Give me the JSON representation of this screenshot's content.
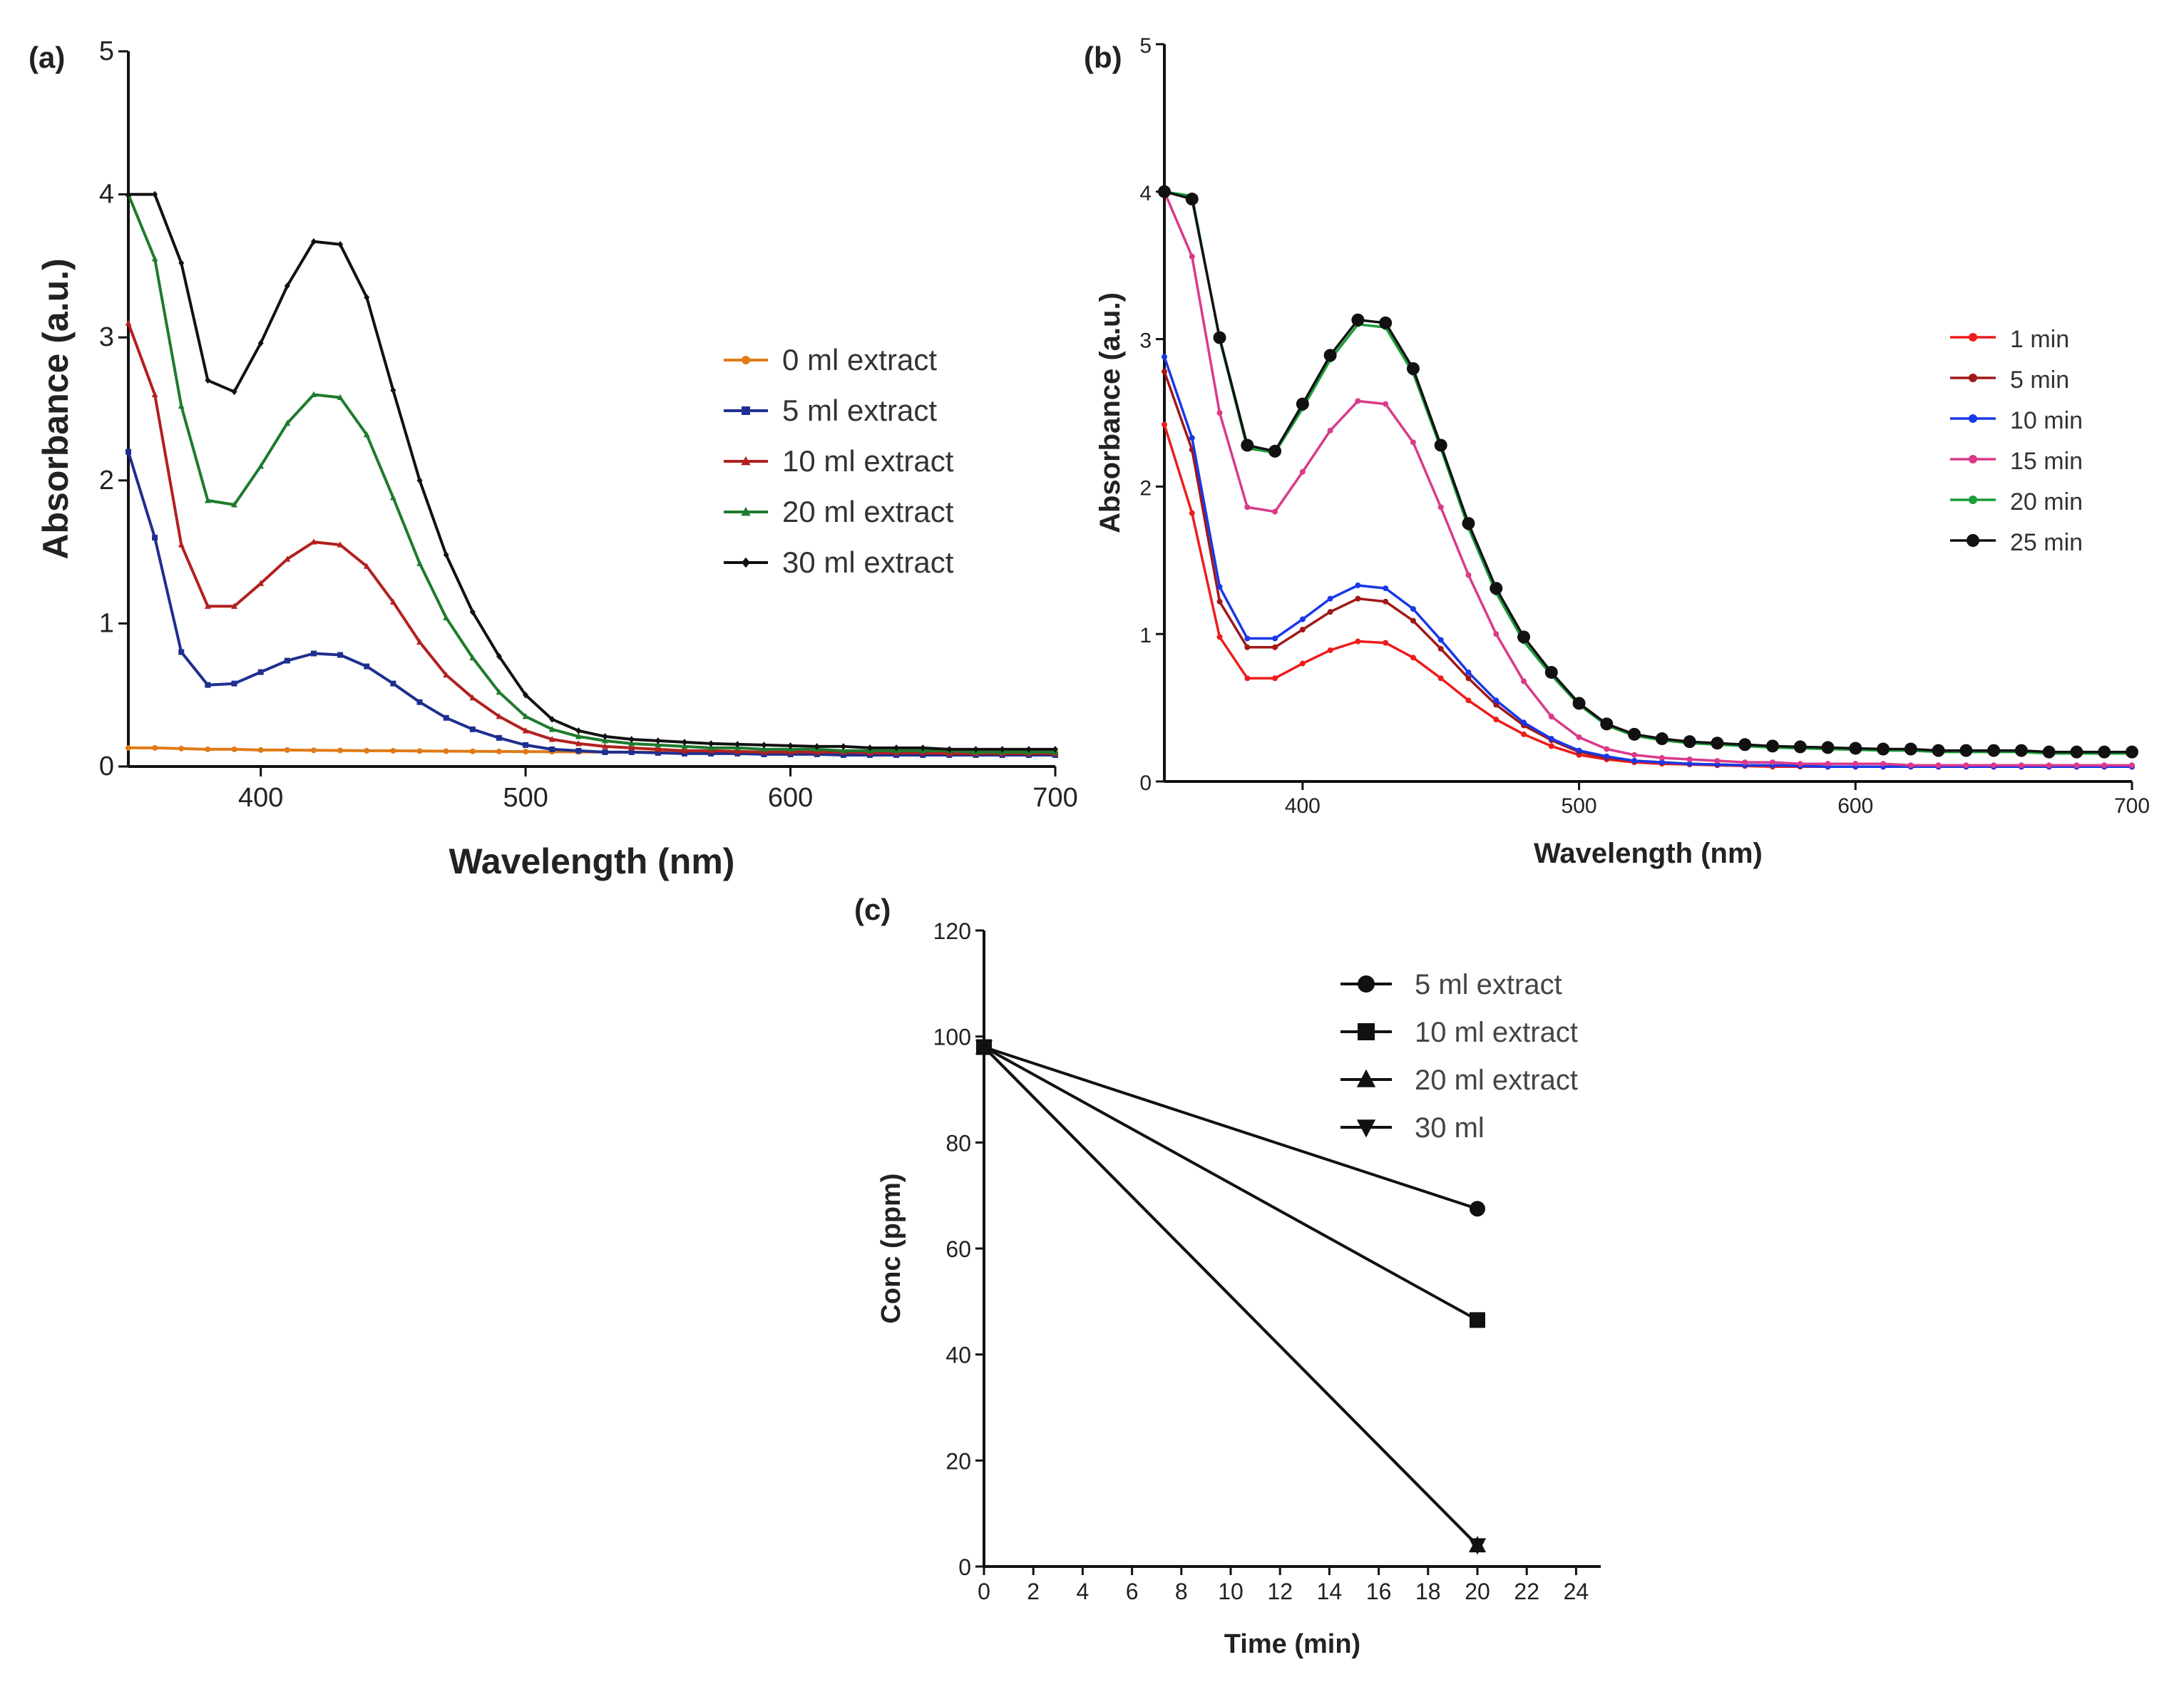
{
  "chart_data": [
    {
      "panel": "(a)",
      "type": "line",
      "xlabel": "Wavelength (nm)",
      "ylabel": "Absorbance (a.u.)",
      "xlim": [
        350,
        700
      ],
      "ylim": [
        0,
        5
      ],
      "xticks": [
        400,
        500,
        600,
        700
      ],
      "yticks": [
        0,
        1,
        2,
        3,
        4,
        5
      ],
      "legend_position": "right",
      "x": [
        350,
        360,
        370,
        380,
        390,
        400,
        410,
        420,
        430,
        440,
        450,
        460,
        470,
        480,
        490,
        500,
        510,
        520,
        530,
        540,
        550,
        560,
        570,
        580,
        590,
        600,
        610,
        620,
        630,
        640,
        650,
        660,
        670,
        680,
        690,
        700
      ],
      "series": [
        {
          "name": "0 ml extract",
          "color": "#e07b18",
          "marker": "dot",
          "values": [
            0.13,
            0.13,
            0.125,
            0.12,
            0.12,
            0.115,
            0.115,
            0.113,
            0.112,
            0.11,
            0.11,
            0.108,
            0.107,
            0.106,
            0.105,
            0.104,
            0.103,
            0.102,
            0.1,
            0.1,
            0.1,
            0.1,
            0.1,
            0.1,
            0.1,
            0.1,
            0.1,
            0.1,
            0.1,
            0.1,
            0.1,
            0.1,
            0.1,
            0.1,
            0.1,
            0.1
          ]
        },
        {
          "name": "5 ml extract",
          "color": "#1f2f8f",
          "marker": "square",
          "values": [
            2.2,
            1.6,
            0.8,
            0.57,
            0.58,
            0.66,
            0.74,
            0.79,
            0.78,
            0.7,
            0.58,
            0.45,
            0.34,
            0.26,
            0.2,
            0.15,
            0.12,
            0.11,
            0.1,
            0.1,
            0.095,
            0.09,
            0.09,
            0.09,
            0.085,
            0.085,
            0.085,
            0.08,
            0.08,
            0.08,
            0.08,
            0.08,
            0.08,
            0.08,
            0.08,
            0.08
          ]
        },
        {
          "name": "10 ml extract",
          "color": "#b22020",
          "marker": "tri",
          "values": [
            3.1,
            2.6,
            1.55,
            1.12,
            1.12,
            1.28,
            1.45,
            1.57,
            1.55,
            1.4,
            1.15,
            0.87,
            0.64,
            0.48,
            0.35,
            0.25,
            0.19,
            0.16,
            0.14,
            0.13,
            0.12,
            0.11,
            0.11,
            0.105,
            0.1,
            0.1,
            0.1,
            0.1,
            0.095,
            0.095,
            0.095,
            0.09,
            0.09,
            0.09,
            0.09,
            0.09
          ]
        },
        {
          "name": "20 ml extract",
          "color": "#1e7b2c",
          "marker": "tri",
          "values": [
            4.0,
            3.55,
            2.52,
            1.86,
            1.83,
            2.1,
            2.4,
            2.6,
            2.58,
            2.32,
            1.88,
            1.42,
            1.04,
            0.76,
            0.52,
            0.35,
            0.26,
            0.21,
            0.18,
            0.16,
            0.15,
            0.14,
            0.13,
            0.13,
            0.12,
            0.12,
            0.12,
            0.11,
            0.11,
            0.11,
            0.11,
            0.11,
            0.1,
            0.1,
            0.1,
            0.1
          ]
        },
        {
          "name": "30 ml extract",
          "color": "#111111",
          "marker": "diamond",
          "values": [
            4.0,
            4.0,
            3.52,
            2.7,
            2.62,
            2.96,
            3.36,
            3.67,
            3.65,
            3.28,
            2.63,
            2.0,
            1.48,
            1.08,
            0.77,
            0.5,
            0.33,
            0.25,
            0.21,
            0.19,
            0.18,
            0.17,
            0.16,
            0.155,
            0.15,
            0.145,
            0.14,
            0.14,
            0.13,
            0.13,
            0.13,
            0.12,
            0.12,
            0.12,
            0.12,
            0.12
          ]
        }
      ]
    },
    {
      "panel": "(b)",
      "type": "line",
      "xlabel": "Wavelength (nm)",
      "ylabel": "Absorbance (a.u.)",
      "xlim": [
        350,
        700
      ],
      "ylim": [
        0,
        5
      ],
      "xticks": [
        400,
        500,
        600,
        700
      ],
      "yticks": [
        0,
        1,
        2,
        3,
        4,
        5
      ],
      "legend_position": "right",
      "x": [
        350,
        360,
        370,
        380,
        390,
        400,
        410,
        420,
        430,
        440,
        450,
        460,
        470,
        480,
        490,
        500,
        510,
        520,
        530,
        540,
        550,
        560,
        570,
        580,
        590,
        600,
        610,
        620,
        630,
        640,
        650,
        660,
        670,
        680,
        690,
        700
      ],
      "series": [
        {
          "name": "1 min",
          "color": "#ee1c1c",
          "marker": "dot",
          "values": [
            2.42,
            1.82,
            0.98,
            0.7,
            0.7,
            0.8,
            0.89,
            0.95,
            0.94,
            0.84,
            0.7,
            0.55,
            0.42,
            0.32,
            0.24,
            0.18,
            0.15,
            0.13,
            0.12,
            0.115,
            0.11,
            0.105,
            0.1,
            0.1,
            0.1,
            0.1,
            0.1,
            0.1,
            0.1,
            0.1,
            0.1,
            0.1,
            0.1,
            0.1,
            0.1,
            0.1
          ]
        },
        {
          "name": "5 min",
          "color": "#a01818",
          "marker": "dot",
          "values": [
            2.78,
            2.25,
            1.22,
            0.91,
            0.91,
            1.03,
            1.15,
            1.24,
            1.22,
            1.09,
            0.9,
            0.7,
            0.52,
            0.38,
            0.28,
            0.2,
            0.16,
            0.14,
            0.13,
            0.12,
            0.115,
            0.11,
            0.11,
            0.105,
            0.1,
            0.1,
            0.1,
            0.1,
            0.1,
            0.1,
            0.1,
            0.1,
            0.1,
            0.1,
            0.1,
            0.1
          ]
        },
        {
          "name": "10 min",
          "color": "#1838e8",
          "marker": "dot",
          "values": [
            2.88,
            2.33,
            1.32,
            0.97,
            0.97,
            1.1,
            1.24,
            1.33,
            1.31,
            1.17,
            0.96,
            0.74,
            0.55,
            0.4,
            0.29,
            0.21,
            0.17,
            0.14,
            0.13,
            0.12,
            0.115,
            0.11,
            0.11,
            0.105,
            0.1,
            0.1,
            0.1,
            0.1,
            0.1,
            0.1,
            0.1,
            0.1,
            0.1,
            0.1,
            0.1,
            0.1
          ]
        },
        {
          "name": "15 min",
          "color": "#d93a8a",
          "marker": "dot",
          "values": [
            4.0,
            3.56,
            2.5,
            1.86,
            1.83,
            2.1,
            2.38,
            2.58,
            2.56,
            2.3,
            1.86,
            1.4,
            1.0,
            0.68,
            0.44,
            0.3,
            0.22,
            0.18,
            0.16,
            0.15,
            0.14,
            0.13,
            0.13,
            0.12,
            0.12,
            0.12,
            0.12,
            0.11,
            0.11,
            0.11,
            0.11,
            0.11,
            0.11,
            0.11,
            0.11,
            0.11
          ]
        },
        {
          "name": "20 min",
          "color": "#1a9e3a",
          "marker": "dot",
          "values": [
            4.0,
            3.97,
            3.0,
            2.26,
            2.23,
            2.53,
            2.86,
            3.1,
            3.08,
            2.77,
            2.26,
            1.72,
            1.28,
            0.95,
            0.72,
            0.52,
            0.38,
            0.31,
            0.28,
            0.26,
            0.25,
            0.24,
            0.23,
            0.225,
            0.22,
            0.215,
            0.21,
            0.21,
            0.2,
            0.2,
            0.2,
            0.2,
            0.19,
            0.19,
            0.19,
            0.19
          ]
        },
        {
          "name": "25 min",
          "color": "#111111",
          "marker": "bigdot",
          "values": [
            4.0,
            3.95,
            3.01,
            2.28,
            2.24,
            2.56,
            2.89,
            3.13,
            3.11,
            2.8,
            2.28,
            1.75,
            1.31,
            0.98,
            0.74,
            0.53,
            0.39,
            0.32,
            0.29,
            0.27,
            0.26,
            0.25,
            0.24,
            0.235,
            0.23,
            0.225,
            0.22,
            0.22,
            0.21,
            0.21,
            0.21,
            0.21,
            0.2,
            0.2,
            0.2,
            0.2
          ]
        }
      ]
    },
    {
      "panel": "(c)",
      "type": "line",
      "xlabel": "Time (min)",
      "ylabel": "Conc (ppm)",
      "xlim": [
        0,
        25
      ],
      "ylim": [
        0,
        120
      ],
      "xticks": [
        0,
        2,
        4,
        6,
        8,
        10,
        12,
        14,
        16,
        18,
        20,
        22,
        24
      ],
      "yticks": [
        0,
        20,
        40,
        60,
        80,
        100,
        120
      ],
      "legend_position": "top-right",
      "x": [
        0,
        20
      ],
      "series": [
        {
          "name": "5 ml extract",
          "color": "#111111",
          "marker": "dot",
          "values": [
            98,
            67.5
          ]
        },
        {
          "name": "10 ml extract",
          "color": "#111111",
          "marker": "square",
          "values": [
            98,
            46.5
          ]
        },
        {
          "name": "20 ml extract",
          "color": "#111111",
          "marker": "tri",
          "values": [
            98,
            4
          ]
        },
        {
          "name": "30 ml",
          "color": "#111111",
          "marker": "invtri",
          "values": [
            98,
            4
          ]
        }
      ]
    }
  ]
}
